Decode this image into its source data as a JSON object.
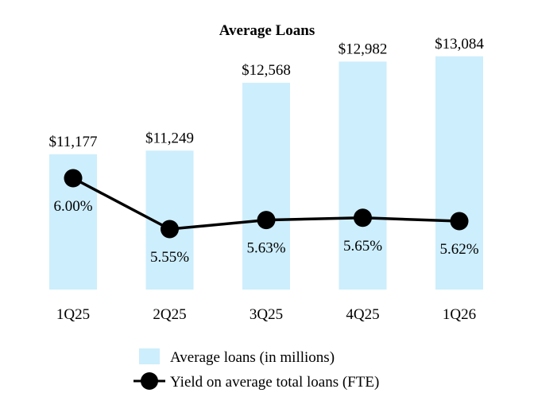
{
  "chart_data": {
    "type": "bar",
    "title": "Average Loans",
    "categories": [
      "1Q25",
      "2Q25",
      "3Q25",
      "4Q25",
      "1Q26"
    ],
    "series": [
      {
        "name": "Average loans (in millions)",
        "type": "bar",
        "values": [
          11177,
          11249,
          12568,
          12982,
          13084
        ],
        "labels": [
          "$11,177",
          "$11,249",
          "$12,568",
          "$12,982",
          "$13,084"
        ],
        "color": "#cdeefc"
      },
      {
        "name": "Yield on average total loans (FTE)",
        "type": "line",
        "values": [
          6.0,
          5.55,
          5.63,
          5.65,
          5.62
        ],
        "labels": [
          "6.00%",
          "5.55%",
          "5.63%",
          "5.65%",
          "5.62%"
        ],
        "color": "#000000"
      }
    ],
    "legend": "bottom-center",
    "grid": false
  }
}
